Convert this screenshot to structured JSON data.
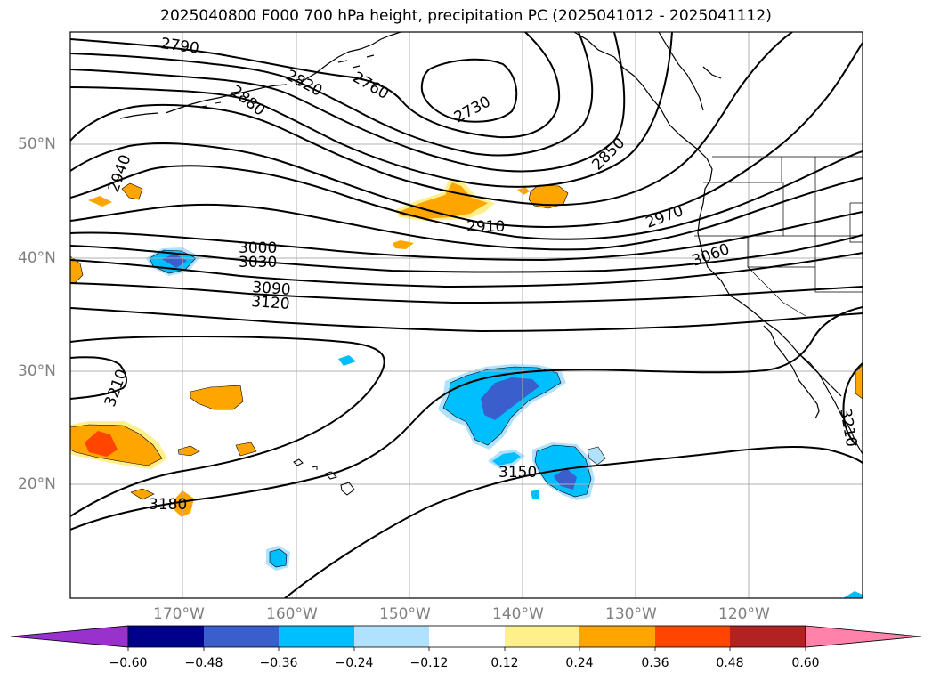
{
  "title": "2025040800 F000 700 hPa height, precipitation PC (2025041012 - 2025041112)",
  "latitude_labels": [
    "50°N",
    "40°N",
    "30°N",
    "20°N"
  ],
  "longitude_labels": [
    "170°W",
    "160°W",
    "150°W",
    "140°W",
    "130°W",
    "120°W"
  ],
  "height_contour_labels": [
    "2790",
    "2820",
    "2760",
    "2730",
    "2880",
    "2850",
    "2940",
    "2910",
    "2970",
    "3000",
    "3030",
    "3060",
    "3090",
    "3120",
    "3210",
    "3150",
    "3180",
    "3210"
  ],
  "colorbar": {
    "ticks": [
      "−0.60",
      "−0.48",
      "−0.36",
      "−0.24",
      "−0.12",
      "0.12",
      "0.24",
      "0.36",
      "0.48",
      "0.60"
    ],
    "colors": [
      "#9932cc",
      "#00008b",
      "#3a5fcd",
      "#00bfff",
      "#b0e2ff",
      "#ffffff",
      "#fff08c",
      "#ffa500",
      "#ff4500",
      "#b22222",
      "#ff82ab"
    ]
  },
  "colors": {
    "positive_light": "#fff08c",
    "positive_mid": "#ffa500",
    "positive_strong": "#ff4500",
    "negative_light": "#b0e2ff",
    "negative_mid": "#00bfff",
    "negative_strong": "#3a5fcd"
  }
}
